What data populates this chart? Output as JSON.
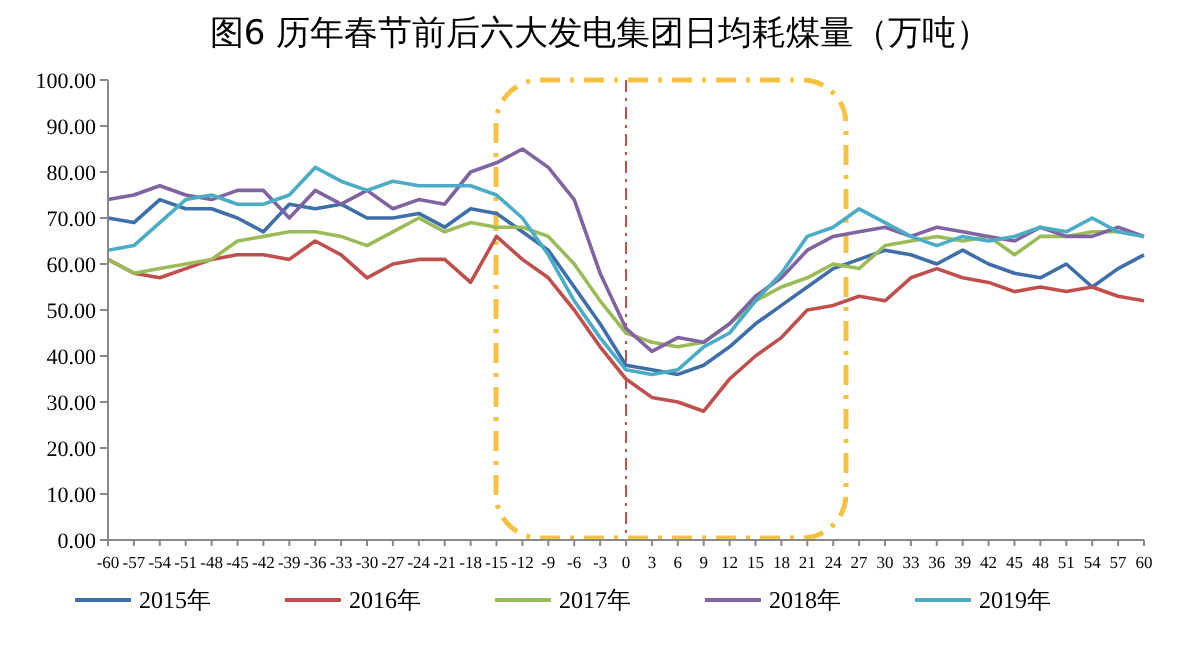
{
  "chart_data": {
    "type": "line",
    "title": "图6 历年春节前后六大发电集团日均耗煤量（万吨）",
    "x": [
      -60,
      -57,
      -54,
      -51,
      -48,
      -45,
      -42,
      -39,
      -36,
      -33,
      -30,
      -27,
      -24,
      -21,
      -18,
      -15,
      -12,
      -9,
      -6,
      -3,
      0,
      3,
      6,
      9,
      12,
      15,
      18,
      21,
      24,
      27,
      30,
      33,
      36,
      39,
      42,
      45,
      48,
      51,
      54,
      57,
      60
    ],
    "series": [
      {
        "name": "2015年",
        "color": "#3f6fa8",
        "values": [
          70,
          69,
          74,
          72,
          72,
          70,
          67,
          73,
          72,
          73,
          70,
          70,
          71,
          68,
          72,
          71,
          67,
          63,
          55,
          47,
          38,
          37,
          36,
          38,
          42,
          47,
          51,
          55,
          59,
          61,
          63,
          62,
          60,
          63,
          60,
          58,
          57,
          60,
          55,
          59,
          62
        ]
      },
      {
        "name": "2016年",
        "color": "#c0504d",
        "values": [
          61,
          58,
          57,
          59,
          61,
          62,
          62,
          61,
          65,
          62,
          57,
          60,
          61,
          61,
          56,
          66,
          61,
          57,
          50,
          42,
          35,
          31,
          30,
          28,
          35,
          40,
          44,
          50,
          51,
          53,
          52,
          57,
          59,
          57,
          56,
          54,
          55,
          54,
          55,
          53,
          52
        ]
      },
      {
        "name": "2017年",
        "color": "#9bbb59",
        "values": [
          61,
          58,
          59,
          60,
          61,
          65,
          66,
          67,
          67,
          66,
          64,
          67,
          70,
          67,
          69,
          68,
          68,
          66,
          60,
          52,
          45,
          43,
          42,
          43,
          47,
          52,
          55,
          57,
          60,
          59,
          64,
          65,
          66,
          65,
          66,
          62,
          66,
          66,
          67,
          67,
          66
        ]
      },
      {
        "name": "2018年",
        "color": "#8064a2",
        "values": [
          74,
          75,
          77,
          75,
          74,
          76,
          76,
          70,
          76,
          73,
          76,
          72,
          74,
          73,
          80,
          82,
          85,
          81,
          74,
          58,
          46,
          41,
          44,
          43,
          47,
          53,
          57,
          63,
          66,
          67,
          68,
          66,
          68,
          67,
          66,
          65,
          68,
          66,
          66,
          68,
          66
        ]
      },
      {
        "name": "2019年",
        "color": "#4bacc6",
        "values": [
          63,
          64,
          69,
          74,
          75,
          73,
          73,
          75,
          81,
          78,
          76,
          78,
          77,
          77,
          77,
          75,
          70,
          62,
          52,
          44,
          37,
          36,
          37,
          42,
          45,
          52,
          58,
          66,
          68,
          72,
          69,
          66,
          64,
          66,
          65,
          66,
          68,
          67,
          70,
          67,
          66
        ]
      }
    ],
    "xlim": [
      -60,
      60
    ],
    "xticks": [
      -60,
      -57,
      -54,
      -51,
      -48,
      -45,
      -42,
      -39,
      -36,
      -33,
      -30,
      -27,
      -24,
      -21,
      -18,
      -15,
      -12,
      -9,
      -6,
      -3,
      0,
      3,
      6,
      9,
      12,
      15,
      18,
      21,
      24,
      27,
      30,
      33,
      36,
      39,
      42,
      45,
      48,
      51,
      54,
      57,
      60
    ],
    "ylim": [
      0,
      100
    ],
    "yticks": [
      {
        "value": 0,
        "label": "0.00"
      },
      {
        "value": 10,
        "label": "10.00"
      },
      {
        "value": 20,
        "label": "20.00"
      },
      {
        "value": 30,
        "label": "30.00"
      },
      {
        "value": 40,
        "label": "40.00"
      },
      {
        "value": 50,
        "label": "50.00"
      },
      {
        "value": 60,
        "label": "60.00"
      },
      {
        "value": 70,
        "label": "70.00"
      },
      {
        "value": 80,
        "label": "80.00"
      },
      {
        "value": 90,
        "label": "90.00"
      },
      {
        "value": 100,
        "label": "100.00"
      }
    ],
    "ref_lines": [
      {
        "axis": "x",
        "value": 0,
        "color": "#c0504d",
        "line_style": "dashed"
      }
    ],
    "legend": "bottom",
    "grid": false,
    "marker": "none",
    "line_style": "solid"
  }
}
